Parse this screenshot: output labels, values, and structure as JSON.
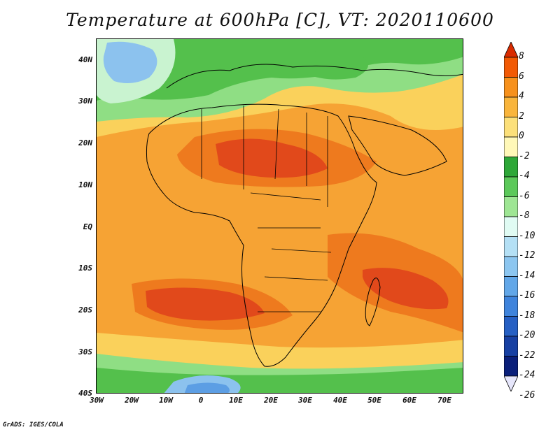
{
  "title": "Temperature at 600hPa [C], VT: 2020110600",
  "credit": "GrADS: IGES/COLA",
  "map": {
    "variable": "Temperature at 600hPa",
    "units": "C",
    "valid_time": "2020110600",
    "lat_labels": [
      "40N",
      "30N",
      "20N",
      "10N",
      "EQ",
      "10S",
      "20S",
      "30S",
      "40S"
    ],
    "lon_labels": [
      "30W",
      "20W",
      "10W",
      "0",
      "10E",
      "20E",
      "30E",
      "40E",
      "50E",
      "60E",
      "70E"
    ]
  },
  "colorbar": {
    "labels": [
      "8",
      "6",
      "4",
      "2",
      "0",
      "-2",
      "-4",
      "-6",
      "-8",
      "-10",
      "-12",
      "-14",
      "-16",
      "-18",
      "-20",
      "-22",
      "-24",
      "-26"
    ],
    "colors": [
      "#d92b00",
      "#f25a05",
      "#f7911c",
      "#f9b53c",
      "#fce07a",
      "#fff8b8",
      "#2ea838",
      "#5cc95a",
      "#9ee694",
      "#e0fbf3",
      "#b4e0f5",
      "#8cc6f0",
      "#62a7e8",
      "#3f84dc",
      "#2660c4",
      "#1740a3",
      "#0a1f7a",
      "#e6e6fb"
    ]
  },
  "regions": {
    "ocean_tropical": "#f6a334",
    "warm_core": "#ee7a1e",
    "hot_core": "#e1491b",
    "subtropical": "#fad15b",
    "cool_band": "#faeaa0",
    "green_dark": "#54c04c",
    "green_light": "#8fde84",
    "mint": "#c9f3d0",
    "cold_blue": "#8cc2ee",
    "colder_blue": "#5c9ee4",
    "land_border": "#000000"
  }
}
